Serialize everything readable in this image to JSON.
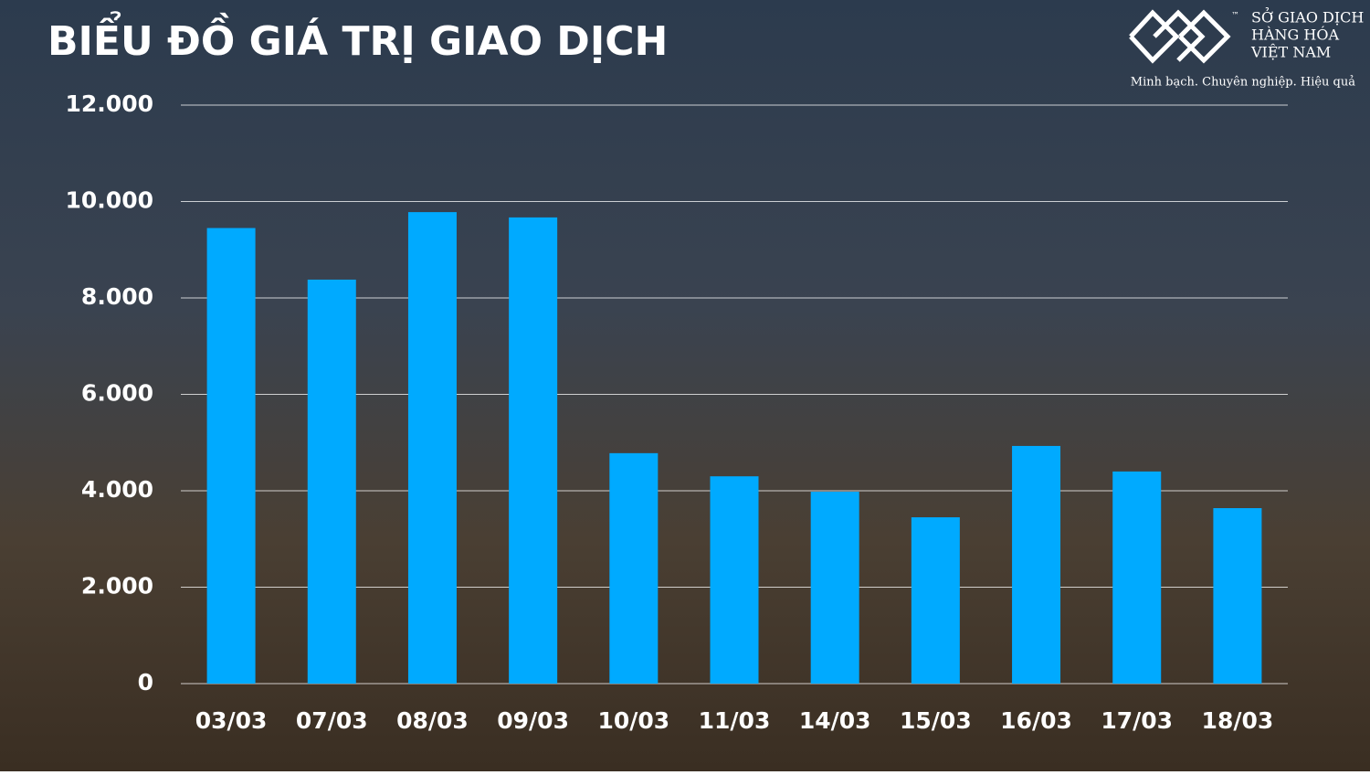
{
  "chart_data": {
    "type": "bar",
    "title": "BIỂU ĐỒ GIÁ TRỊ GIAO DỊCH",
    "categories": [
      "03/03",
      "07/03",
      "08/03",
      "09/03",
      "10/03",
      "11/03",
      "14/03",
      "15/03",
      "16/03",
      "17/03",
      "18/03"
    ],
    "values": [
      9450,
      8380,
      9780,
      9670,
      4780,
      4300,
      3980,
      3450,
      4930,
      4400,
      3640
    ],
    "color": "#00aaff",
    "ylim": [
      0,
      12000
    ],
    "yticks": [
      0,
      {
        "value": 2000,
        "label": "2.000"
      },
      {
        "value": 4000,
        "label": "4.000"
      },
      {
        "value": 6000,
        "label": "6.000"
      },
      {
        "value": 8000,
        "label": "8.000"
      },
      {
        "value": 10000,
        "label": "10.000"
      },
      {
        "value": 12000,
        "label": "12.000"
      }
    ],
    "grid": true
  },
  "logo": {
    "line1": "SỞ GIAO DỊCH",
    "line2": "HÀNG HÓA",
    "line3": "VIỆT NAM",
    "tm": "™",
    "slogan": "Minh bạch. Chuyên nghiệp. Hiệu quả"
  }
}
